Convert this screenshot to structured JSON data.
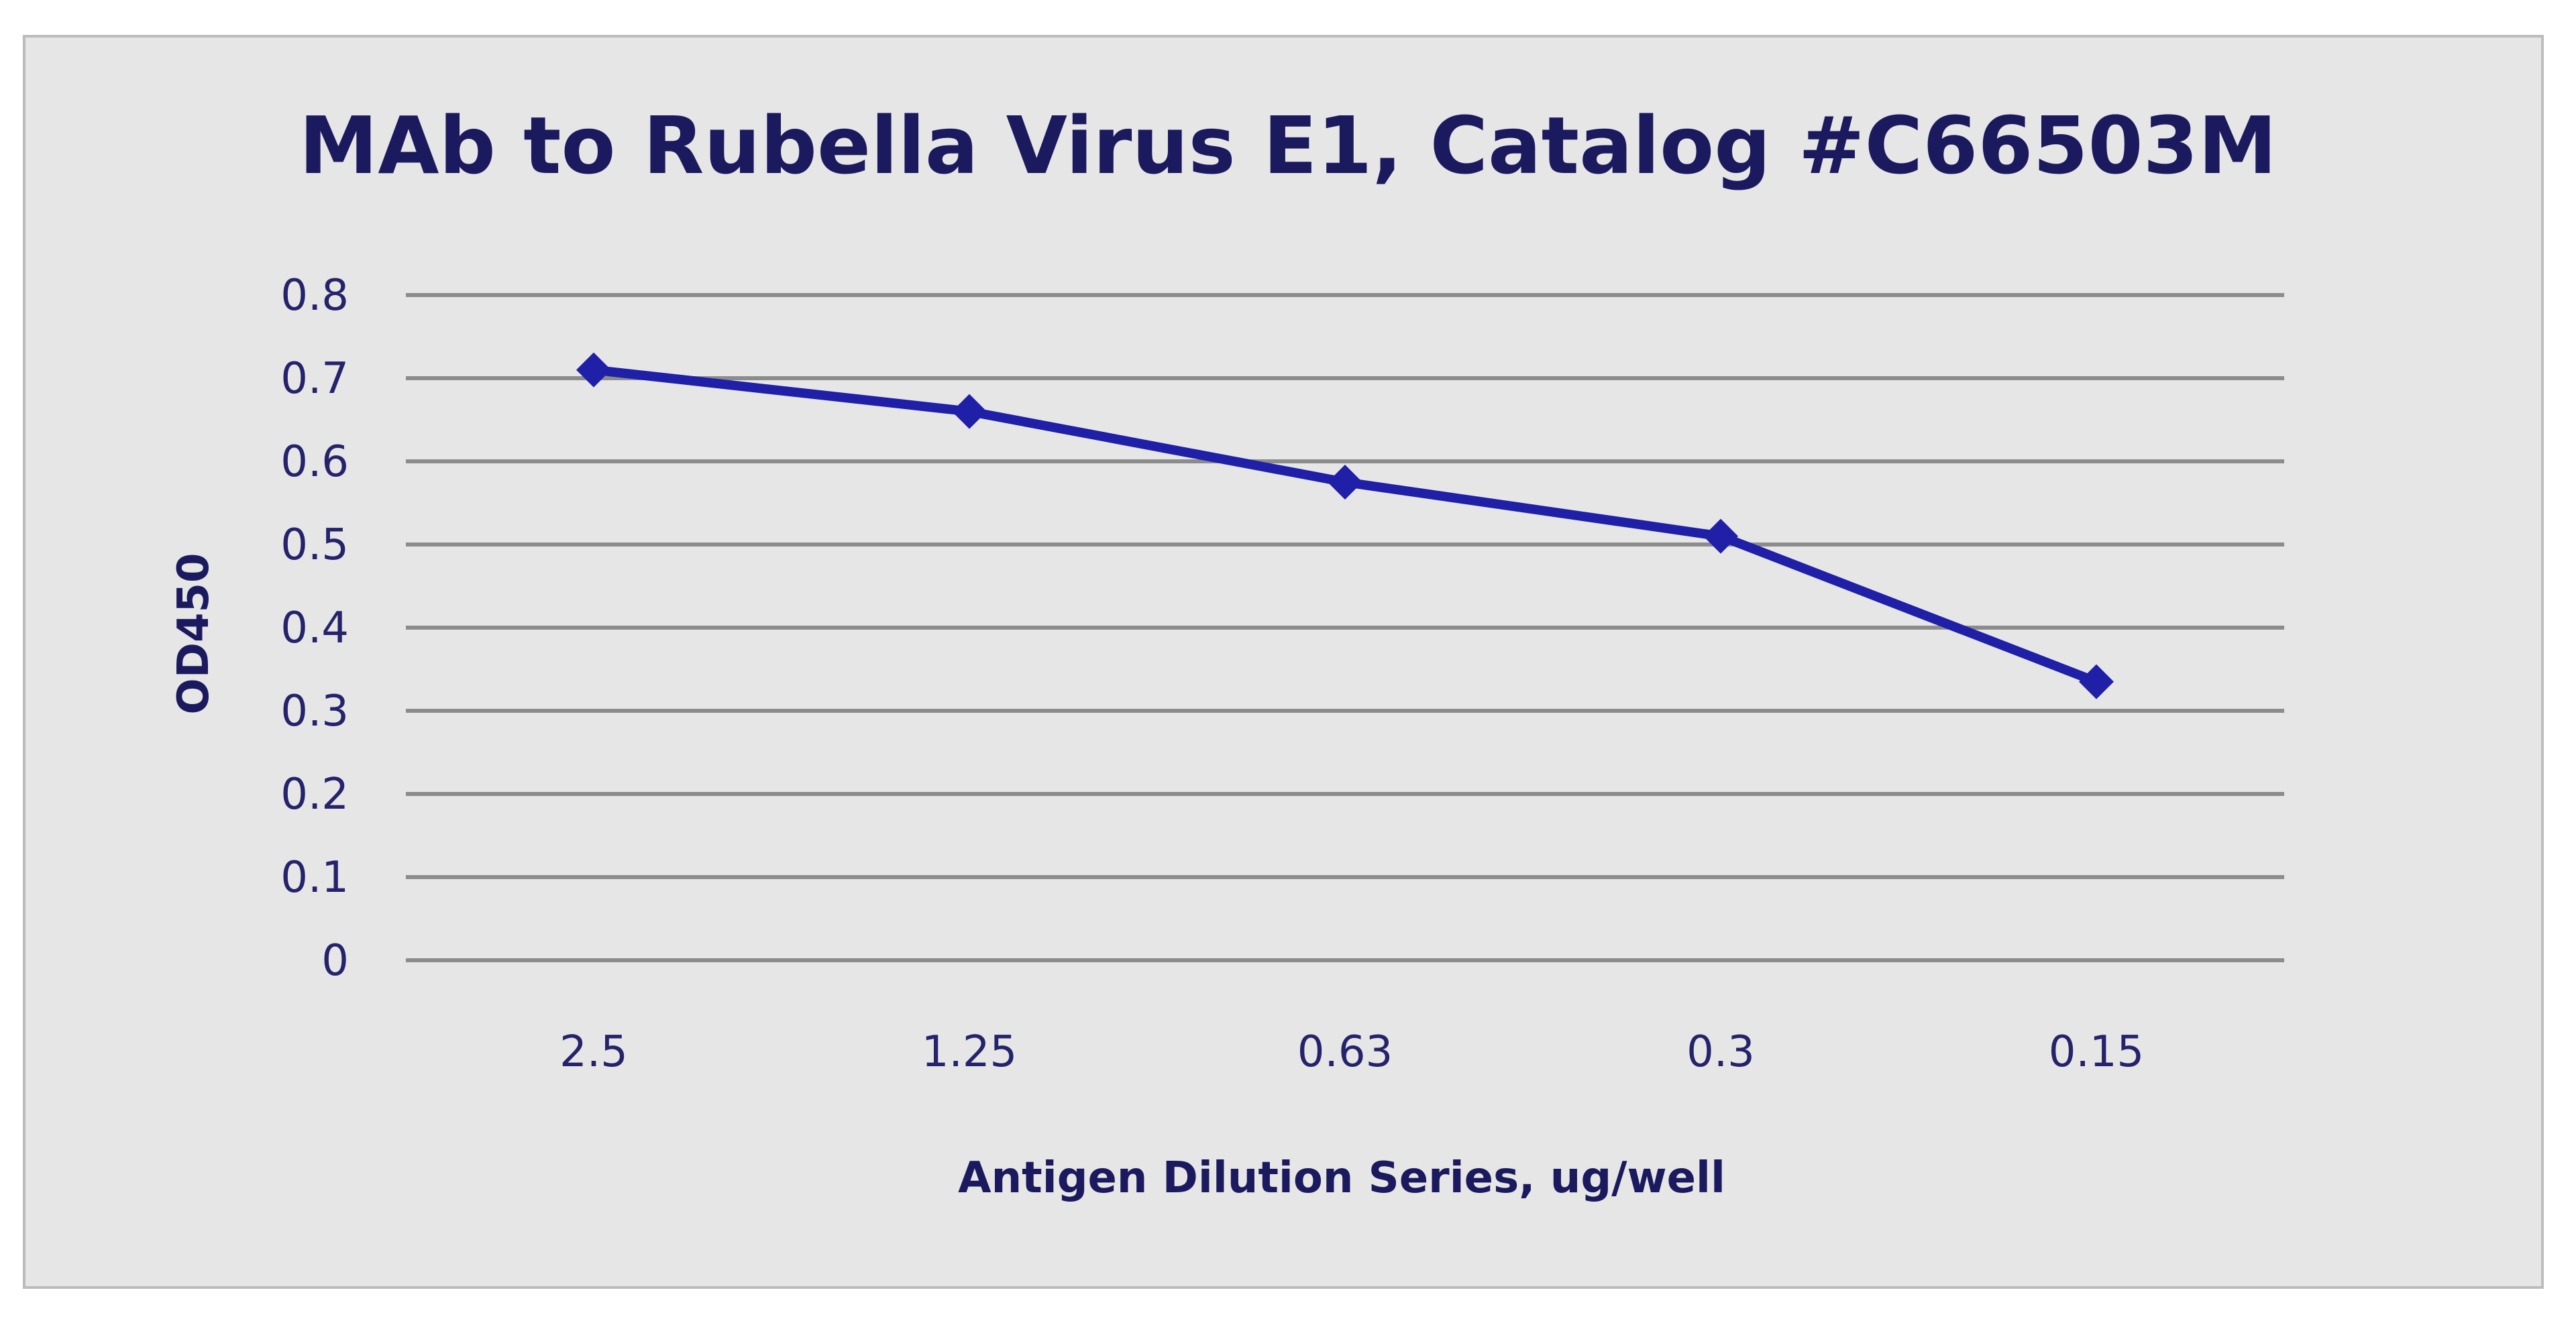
{
  "chart_data": {
    "type": "line",
    "title": "MAb to Rubella Virus E1, Catalog #C66503M",
    "xlabel": "Antigen Dilution Series, ug/well",
    "ylabel": "OD450",
    "categories": [
      "2.5",
      "1.25",
      "0.63",
      "0.3",
      "0.15"
    ],
    "series": [
      {
        "values": [
          0.71,
          0.66,
          0.575,
          0.51,
          0.335
        ]
      }
    ],
    "ylim": [
      0,
      0.8
    ],
    "yticks": [
      "0",
      "0.1",
      "0.2",
      "0.3",
      "0.4",
      "0.5",
      "0.6",
      "0.7",
      "0.8"
    ],
    "grid": true,
    "legend": "none",
    "colors": {
      "series": "#1f1fa8",
      "grid": "#8c8c8c",
      "background": "#e6e6e6",
      "text": "#1c1a5e"
    }
  }
}
